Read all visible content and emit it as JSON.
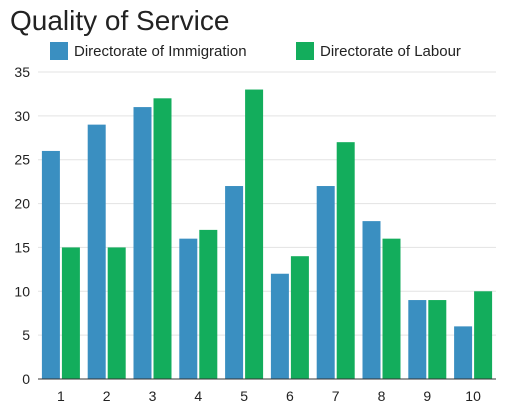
{
  "chart_data": {
    "type": "bar",
    "title": "Quality of Service",
    "categories": [
      "1",
      "2",
      "3",
      "4",
      "5",
      "6",
      "7",
      "8",
      "9",
      "10"
    ],
    "series": [
      {
        "name": "Directorate of Immigration",
        "color": "#3a8fc1",
        "values": [
          26,
          29,
          31,
          16,
          22,
          12,
          22,
          18,
          9,
          6
        ]
      },
      {
        "name": "Directorate of Labour",
        "color": "#13ad5c",
        "values": [
          15,
          15,
          32,
          17,
          33,
          14,
          27,
          16,
          9,
          10
        ]
      }
    ],
    "ylim": [
      0,
      35
    ],
    "yticks": [
      "0",
      "5",
      "10",
      "15",
      "20",
      "25",
      "30",
      "35"
    ],
    "xlabel": "",
    "ylabel": "",
    "grid": true,
    "legend_position": "top"
  }
}
